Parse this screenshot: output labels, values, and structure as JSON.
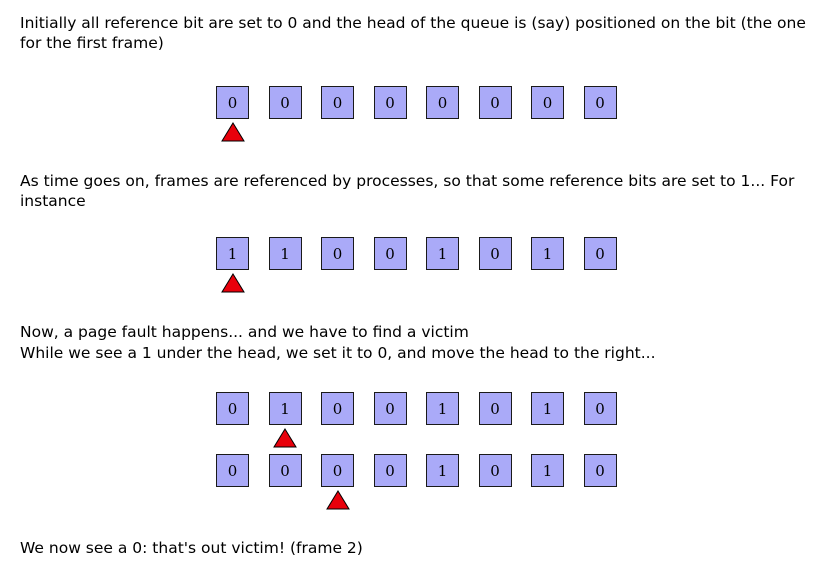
{
  "paragraphs": [
    "Initially all reference bit are set to 0 and the head of the queue is (say) positioned on the bit (the one for the first frame)",
    "As time goes on, frames are referenced by processes, so that some reference bits are set to 1... For instance",
    "Now, a page fault happens... and we have to find a victim",
    "While we see a 1 under the head, we set it to 0, and move the head to the right...",
    "We now see a 0: that's out victim! (frame 2)"
  ],
  "rows": [
    {
      "bits": [
        "0",
        "0",
        "0",
        "0",
        "0",
        "0",
        "0",
        "0"
      ],
      "head": 0
    },
    {
      "bits": [
        "1",
        "1",
        "0",
        "0",
        "1",
        "0",
        "1",
        "0"
      ],
      "head": 0
    },
    {
      "bits": [
        "0",
        "1",
        "0",
        "0",
        "1",
        "0",
        "1",
        "0"
      ],
      "head": 1
    },
    {
      "bits": [
        "0",
        "0",
        "0",
        "0",
        "1",
        "0",
        "1",
        "0"
      ],
      "head": 2
    }
  ],
  "colors": {
    "bit_fill": "#aaaaf8",
    "bit_border": "#1a1a1a",
    "head_fill": "#e8000b"
  }
}
